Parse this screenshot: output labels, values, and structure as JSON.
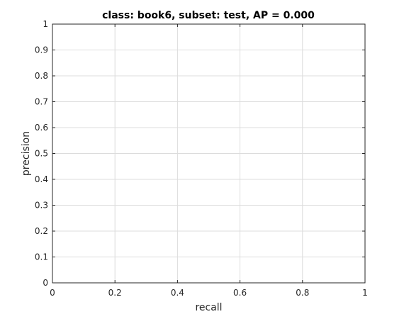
{
  "chart_data": {
    "type": "line",
    "title": "class: book6, subset: test, AP = 0.000",
    "xlabel": "recall",
    "ylabel": "precision",
    "xlim": [
      0,
      1
    ],
    "ylim": [
      0,
      1
    ],
    "x_ticks": [
      0,
      0.2,
      0.4,
      0.6,
      0.8,
      1
    ],
    "x_tick_labels": [
      "0",
      "0.2",
      "0.4",
      "0.6",
      "0.8",
      "1"
    ],
    "y_ticks": [
      0,
      0.1,
      0.2,
      0.3,
      0.4,
      0.5,
      0.6,
      0.7,
      0.8,
      0.9,
      1
    ],
    "y_tick_labels": [
      "0",
      "0.1",
      "0.2",
      "0.3",
      "0.4",
      "0.5",
      "0.6",
      "0.7",
      "0.8",
      "0.9",
      "1"
    ],
    "grid": true,
    "series": [
      {
        "x": [],
        "y": []
      }
    ]
  }
}
